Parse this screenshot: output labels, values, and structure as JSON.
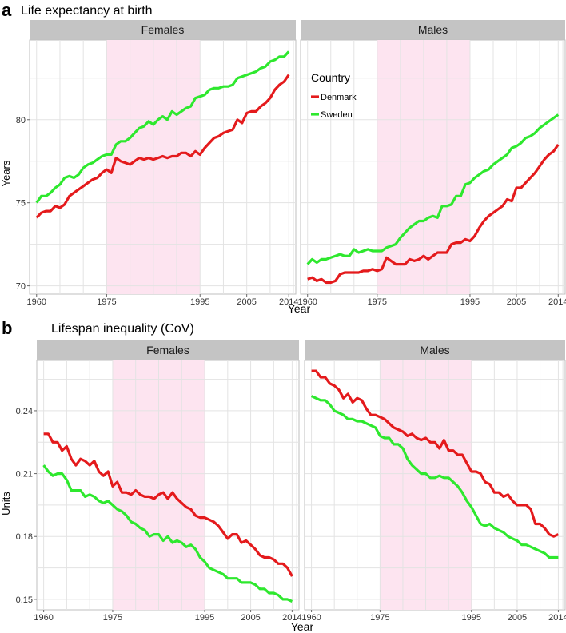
{
  "colors": {
    "denmark": "#e41a1c",
    "sweden": "#2ee82e",
    "shade": "#fde4f0",
    "strip": "#c4c4c4",
    "grid": "#e3e3e3"
  },
  "chart_data": [
    {
      "panel_letter": "a",
      "type": "line",
      "title": "Life expectancy at birth",
      "xlabel": "Year",
      "ylabel": "Years",
      "facets": [
        "Females",
        "Males"
      ],
      "xlim": [
        1958.5,
        2015.5
      ],
      "ylim": [
        69.5,
        84.8
      ],
      "x_ticks": [
        1960,
        1975,
        1995,
        2005,
        2014
      ],
      "y_ticks": [
        70,
        75,
        80
      ],
      "highlight_band": [
        1975,
        1995
      ],
      "legend": {
        "title": "Country",
        "placement": "top-left of Males panel",
        "entries": [
          "Denmark",
          "Sweden"
        ]
      },
      "x": [
        1960,
        1961,
        1962,
        1963,
        1964,
        1965,
        1966,
        1967,
        1968,
        1969,
        1970,
        1971,
        1972,
        1973,
        1974,
        1975,
        1976,
        1977,
        1978,
        1979,
        1980,
        1981,
        1982,
        1983,
        1984,
        1985,
        1986,
        1987,
        1988,
        1989,
        1990,
        1991,
        1992,
        1993,
        1994,
        1995,
        1996,
        1997,
        1998,
        1999,
        2000,
        2001,
        2002,
        2003,
        2004,
        2005,
        2006,
        2007,
        2008,
        2009,
        2010,
        2011,
        2012,
        2013,
        2014
      ],
      "series": [
        {
          "name": "Denmark",
          "facet": "Females",
          "color": "#e41a1c",
          "values": [
            74.1,
            74.4,
            74.5,
            74.5,
            74.8,
            74.7,
            74.9,
            75.4,
            75.6,
            75.8,
            76.0,
            76.2,
            76.4,
            76.5,
            76.8,
            77.0,
            76.8,
            77.7,
            77.5,
            77.4,
            77.3,
            77.5,
            77.7,
            77.6,
            77.7,
            77.6,
            77.7,
            77.8,
            77.7,
            77.8,
            77.8,
            78.0,
            78.0,
            77.8,
            78.1,
            77.9,
            78.3,
            78.6,
            78.9,
            79.0,
            79.2,
            79.3,
            79.4,
            80.0,
            79.8,
            80.4,
            80.5,
            80.5,
            80.8,
            81.0,
            81.3,
            81.8,
            82.1,
            82.3,
            82.7
          ]
        },
        {
          "name": "Sweden",
          "facet": "Females",
          "color": "#2ee82e",
          "values": [
            75.0,
            75.4,
            75.4,
            75.6,
            75.9,
            76.1,
            76.5,
            76.6,
            76.5,
            76.7,
            77.1,
            77.3,
            77.4,
            77.6,
            77.8,
            77.9,
            77.9,
            78.5,
            78.7,
            78.7,
            78.9,
            79.2,
            79.5,
            79.6,
            79.9,
            79.7,
            80.0,
            80.2,
            80.0,
            80.5,
            80.3,
            80.5,
            80.7,
            80.8,
            81.3,
            81.4,
            81.5,
            81.8,
            81.9,
            81.9,
            82.0,
            82.0,
            82.1,
            82.5,
            82.6,
            82.7,
            82.8,
            82.9,
            83.1,
            83.2,
            83.5,
            83.6,
            83.8,
            83.8,
            84.1
          ]
        },
        {
          "name": "Denmark",
          "facet": "Males",
          "color": "#e41a1c",
          "values": [
            70.4,
            70.5,
            70.3,
            70.4,
            70.2,
            70.2,
            70.3,
            70.7,
            70.8,
            70.8,
            70.8,
            70.8,
            70.9,
            70.9,
            71.0,
            70.9,
            71.0,
            71.7,
            71.5,
            71.3,
            71.3,
            71.3,
            71.6,
            71.5,
            71.6,
            71.8,
            71.6,
            71.8,
            72.0,
            72.0,
            72.0,
            72.5,
            72.6,
            72.6,
            72.8,
            72.7,
            73.0,
            73.5,
            73.9,
            74.2,
            74.4,
            74.6,
            74.8,
            75.2,
            75.1,
            75.9,
            75.9,
            76.2,
            76.5,
            76.8,
            77.2,
            77.6,
            77.9,
            78.1,
            78.5
          ]
        },
        {
          "name": "Sweden",
          "facet": "Males",
          "color": "#2ee82e",
          "values": [
            71.3,
            71.6,
            71.4,
            71.6,
            71.6,
            71.7,
            71.8,
            71.9,
            71.8,
            71.8,
            72.2,
            72.0,
            72.1,
            72.2,
            72.1,
            72.1,
            72.1,
            72.3,
            72.4,
            72.5,
            72.9,
            73.2,
            73.5,
            73.7,
            73.9,
            73.9,
            74.1,
            74.2,
            74.1,
            74.8,
            74.8,
            74.9,
            75.4,
            75.4,
            76.1,
            76.2,
            76.5,
            76.7,
            76.9,
            77.0,
            77.3,
            77.5,
            77.7,
            77.9,
            78.3,
            78.4,
            78.6,
            78.9,
            79.0,
            79.2,
            79.5,
            79.7,
            79.9,
            80.1,
            80.3
          ]
        }
      ]
    },
    {
      "panel_letter": "b",
      "type": "line",
      "title": "Lifespan inequality (CoV)",
      "xlabel": "Year",
      "ylabel": "Units",
      "facets": [
        "Females",
        "Males"
      ],
      "xlim": [
        1958.5,
        2015.5
      ],
      "ylim": [
        0.145,
        0.264
      ],
      "x_ticks": [
        1960,
        1975,
        1995,
        2005,
        2014
      ],
      "y_ticks": [
        0.15,
        0.18,
        0.21,
        0.24
      ],
      "y_tick_labels": [
        "0.15",
        "0.18",
        "0.21",
        "0.24"
      ],
      "highlight_band": [
        1975,
        1995
      ],
      "x": [
        1960,
        1961,
        1962,
        1963,
        1964,
        1965,
        1966,
        1967,
        1968,
        1969,
        1970,
        1971,
        1972,
        1973,
        1974,
        1975,
        1976,
        1977,
        1978,
        1979,
        1980,
        1981,
        1982,
        1983,
        1984,
        1985,
        1986,
        1987,
        1988,
        1989,
        1990,
        1991,
        1992,
        1993,
        1994,
        1995,
        1996,
        1997,
        1998,
        1999,
        2000,
        2001,
        2002,
        2003,
        2004,
        2005,
        2006,
        2007,
        2008,
        2009,
        2010,
        2011,
        2012,
        2013,
        2014
      ],
      "series": [
        {
          "name": "Denmark",
          "facet": "Females",
          "color": "#e41a1c",
          "values": [
            0.229,
            0.229,
            0.225,
            0.225,
            0.221,
            0.223,
            0.217,
            0.214,
            0.217,
            0.216,
            0.214,
            0.216,
            0.211,
            0.209,
            0.211,
            0.204,
            0.206,
            0.201,
            0.201,
            0.2,
            0.202,
            0.2,
            0.199,
            0.199,
            0.198,
            0.2,
            0.201,
            0.198,
            0.201,
            0.198,
            0.196,
            0.194,
            0.193,
            0.19,
            0.189,
            0.189,
            0.188,
            0.187,
            0.185,
            0.182,
            0.179,
            0.181,
            0.181,
            0.177,
            0.178,
            0.176,
            0.174,
            0.171,
            0.17,
            0.17,
            0.169,
            0.167,
            0.167,
            0.165,
            0.161
          ]
        },
        {
          "name": "Sweden",
          "facet": "Females",
          "color": "#2ee82e",
          "values": [
            0.214,
            0.211,
            0.209,
            0.21,
            0.21,
            0.207,
            0.202,
            0.202,
            0.202,
            0.199,
            0.2,
            0.199,
            0.197,
            0.196,
            0.197,
            0.195,
            0.193,
            0.192,
            0.19,
            0.187,
            0.186,
            0.184,
            0.183,
            0.18,
            0.181,
            0.181,
            0.178,
            0.18,
            0.177,
            0.178,
            0.177,
            0.175,
            0.176,
            0.174,
            0.17,
            0.168,
            0.165,
            0.164,
            0.163,
            0.162,
            0.16,
            0.16,
            0.16,
            0.158,
            0.158,
            0.158,
            0.157,
            0.155,
            0.155,
            0.153,
            0.153,
            0.152,
            0.15,
            0.15,
            0.149
          ]
        },
        {
          "name": "Denmark",
          "facet": "Males",
          "color": "#e41a1c",
          "values": [
            0.259,
            0.259,
            0.256,
            0.256,
            0.253,
            0.252,
            0.25,
            0.246,
            0.248,
            0.244,
            0.246,
            0.245,
            0.241,
            0.238,
            0.238,
            0.237,
            0.236,
            0.234,
            0.232,
            0.231,
            0.23,
            0.228,
            0.229,
            0.227,
            0.226,
            0.227,
            0.225,
            0.225,
            0.222,
            0.226,
            0.221,
            0.221,
            0.219,
            0.219,
            0.215,
            0.211,
            0.211,
            0.21,
            0.206,
            0.205,
            0.201,
            0.201,
            0.199,
            0.2,
            0.197,
            0.195,
            0.195,
            0.195,
            0.193,
            0.186,
            0.186,
            0.184,
            0.181,
            0.18,
            0.181
          ]
        },
        {
          "name": "Sweden",
          "facet": "Males",
          "color": "#2ee82e",
          "values": [
            0.247,
            0.246,
            0.245,
            0.245,
            0.243,
            0.24,
            0.239,
            0.238,
            0.236,
            0.236,
            0.235,
            0.235,
            0.234,
            0.233,
            0.232,
            0.228,
            0.227,
            0.227,
            0.224,
            0.224,
            0.222,
            0.217,
            0.214,
            0.212,
            0.21,
            0.21,
            0.208,
            0.208,
            0.209,
            0.208,
            0.208,
            0.206,
            0.204,
            0.201,
            0.197,
            0.194,
            0.19,
            0.186,
            0.185,
            0.186,
            0.184,
            0.183,
            0.182,
            0.18,
            0.179,
            0.178,
            0.176,
            0.176,
            0.175,
            0.174,
            0.173,
            0.172,
            0.17,
            0.17,
            0.17
          ]
        }
      ]
    }
  ]
}
